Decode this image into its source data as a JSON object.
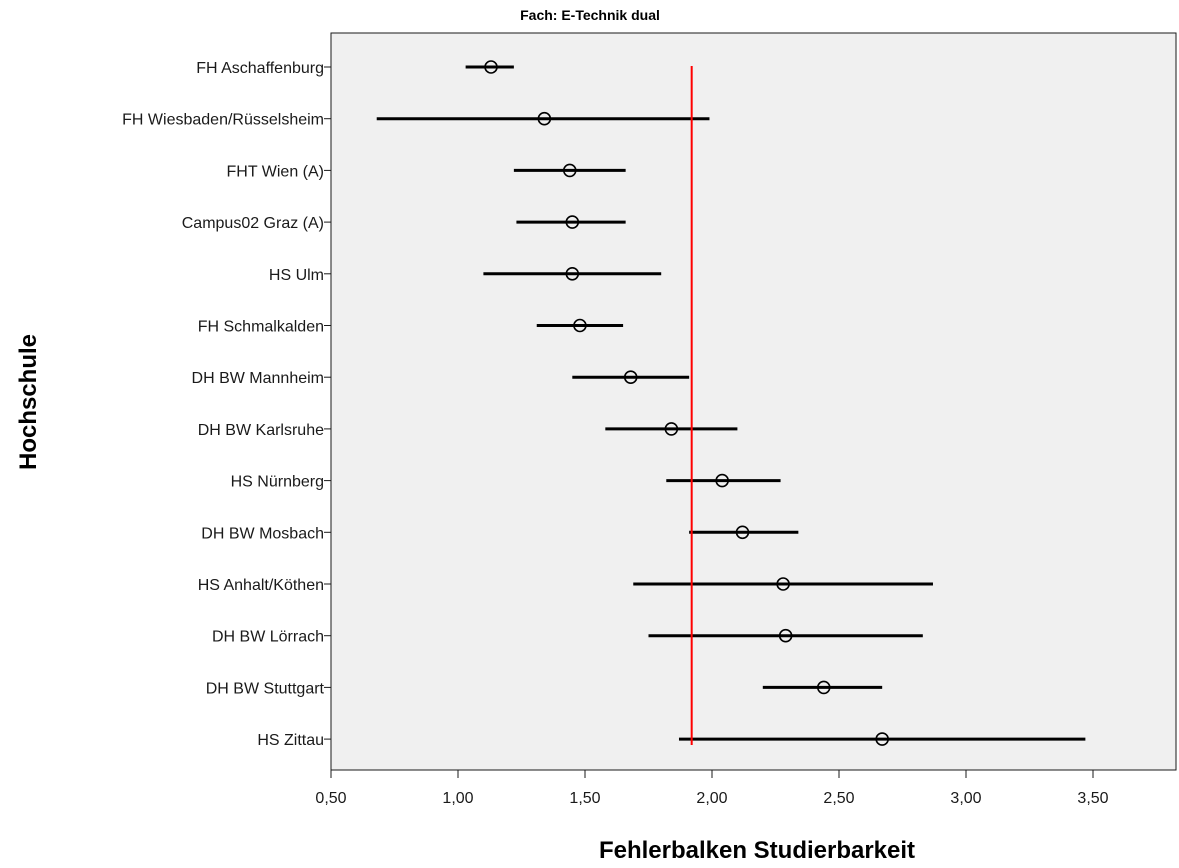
{
  "chart_data": {
    "type": "scatter",
    "subtype": "error-bar",
    "title": "Fach: E-Technik dual",
    "xlabel": "Fehlerbalken Studierbarkeit",
    "ylabel": "Hochschule",
    "xlim": [
      0.5,
      3.85
    ],
    "x_ticks": [
      "0,50",
      "1,00",
      "1,50",
      "2,00",
      "2,50",
      "3,00",
      "3,50"
    ],
    "x_tick_values": [
      0.5,
      1.0,
      1.5,
      2.0,
      2.5,
      3.0,
      3.5
    ],
    "reference_line": 1.92,
    "reference_color": "#ff0000",
    "plot_background": "#f0f0f0",
    "grid": false,
    "categories": [
      "FH Aschaffenburg",
      "FH Wiesbaden/Rüsselsheim",
      "FHT Wien (A)",
      "Campus02 Graz (A)",
      "HS Ulm",
      "FH Schmalkalden",
      "DH BW Mannheim",
      "DH BW Karlsruhe",
      "HS Nürnberg",
      "DH BW Mosbach",
      "HS Anhalt/Köthen",
      "DH BW Lörrach",
      "DH BW Stuttgart",
      "HS Zittau"
    ],
    "means": [
      1.13,
      1.34,
      1.44,
      1.45,
      1.45,
      1.48,
      1.68,
      1.84,
      2.04,
      2.12,
      2.28,
      2.29,
      2.44,
      2.67
    ],
    "lower": [
      1.03,
      0.68,
      1.22,
      1.23,
      1.1,
      1.31,
      1.45,
      1.58,
      1.82,
      1.91,
      1.69,
      1.75,
      2.2,
      1.87
    ],
    "upper": [
      1.22,
      1.99,
      1.66,
      1.66,
      1.8,
      1.65,
      1.91,
      2.1,
      2.27,
      2.34,
      2.87,
      2.83,
      2.67,
      3.47
    ]
  }
}
